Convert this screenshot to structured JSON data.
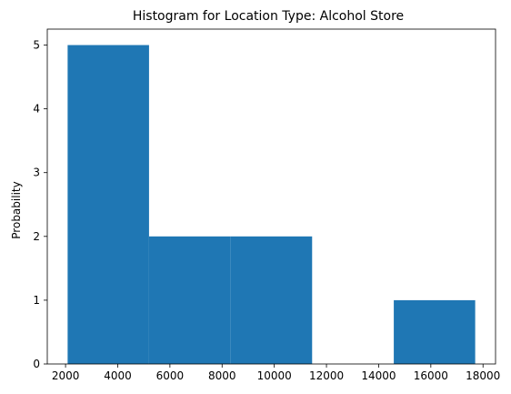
{
  "chart_data": {
    "type": "bar",
    "title": "Histogram for Location Type: Alcohol Store",
    "xlabel": "",
    "ylabel": "Probability",
    "bins": [
      {
        "start": 2080,
        "end": 5200,
        "value": 5
      },
      {
        "start": 5200,
        "end": 8330,
        "value": 2
      },
      {
        "start": 8330,
        "end": 11450,
        "value": 2
      },
      {
        "start": 11450,
        "end": 14580,
        "value": 0
      },
      {
        "start": 14580,
        "end": 17700,
        "value": 1
      }
    ],
    "xlim": [
      1300,
      18480
    ],
    "ylim": [
      0,
      5.25
    ],
    "xticks": [
      2000,
      4000,
      6000,
      8000,
      10000,
      12000,
      14000,
      16000,
      18000
    ],
    "yticks": [
      0,
      1,
      2,
      3,
      4,
      5
    ],
    "bar_color": "#1f77b4",
    "grid": false
  }
}
